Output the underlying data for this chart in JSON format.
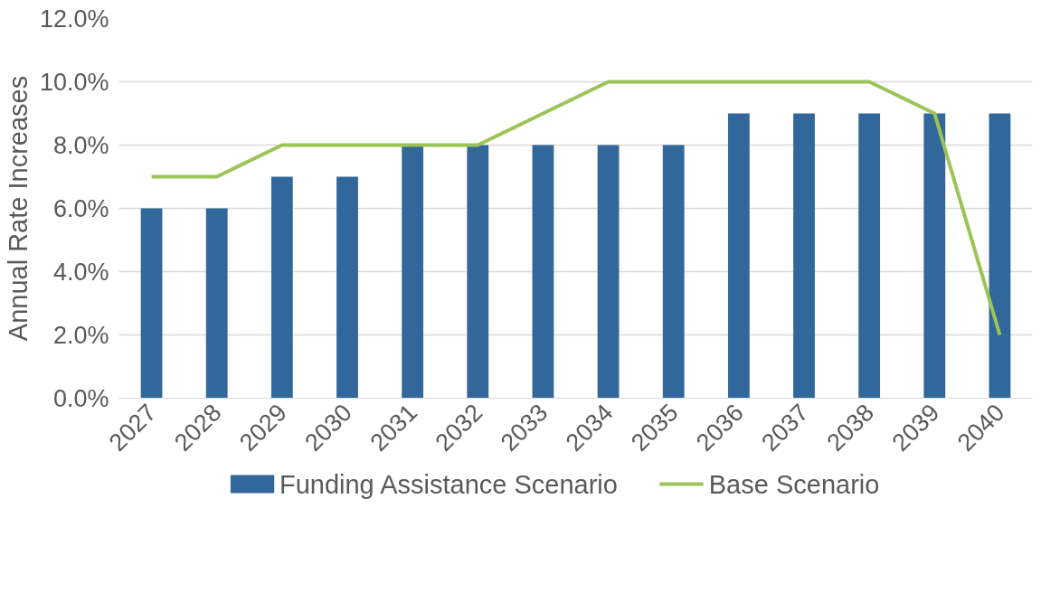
{
  "chart_data": {
    "type": "bar",
    "ylabel": "Annual Rate Increases",
    "categories": [
      "2027",
      "2028",
      "2029",
      "2030",
      "2031",
      "2032",
      "2033",
      "2034",
      "2035",
      "2036",
      "2037",
      "2038",
      "2039",
      "2040"
    ],
    "series": [
      {
        "name": "Funding Assistance Scenario",
        "color": "#31679a",
        "values": [
          6,
          6,
          7,
          7,
          8,
          8,
          8,
          8,
          8,
          9,
          9,
          9,
          9,
          9
        ]
      },
      {
        "name": "Base Scenario",
        "type": "line",
        "color": "#9bc457",
        "values": [
          7,
          7,
          8,
          8,
          8,
          8,
          9,
          10,
          10,
          10,
          10,
          10,
          9,
          2
        ]
      }
    ],
    "ylim": [
      0,
      12
    ],
    "yticks": [
      {
        "value": 0,
        "label": "0.0%"
      },
      {
        "value": 2,
        "label": "2.0%"
      },
      {
        "value": 4,
        "label": "4.0%"
      },
      {
        "value": 6,
        "label": "6.0%"
      },
      {
        "value": 8,
        "label": "8.0%"
      },
      {
        "value": 10,
        "label": "10.0%"
      },
      {
        "value": 12,
        "label": "12.0%"
      }
    ],
    "grid": "y",
    "legend": "bottom",
    "marker": "none",
    "line_style": "solid"
  }
}
